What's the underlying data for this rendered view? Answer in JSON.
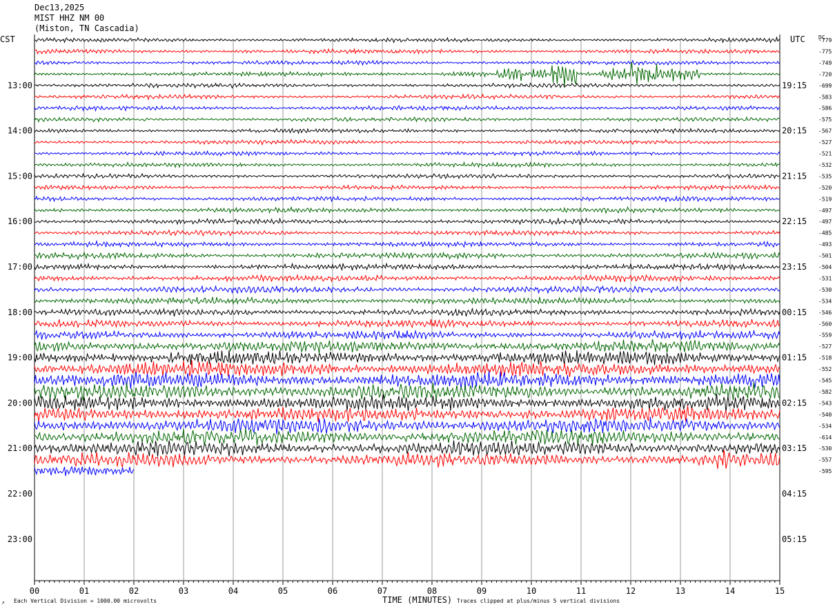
{
  "header": {
    "date": "Dec13,2025",
    "station": "MIST HHZ NM 00",
    "location": "(Miston, TN Cascadia)"
  },
  "left_zone_label": "CST",
  "right_zone_label": "UTC",
  "dc_label": "DC",
  "footer": {
    "scale_note": "Each Vertical Division = 1000.00 microvolts",
    "clip_note": "Traces clipped at plus/minus 5 vertical divisions",
    "corner_mark": "↗"
  },
  "colors": {
    "trace_cycle": [
      "#000000",
      "#ff0000",
      "#0000ff",
      "#006600"
    ],
    "grid": "#999999",
    "background": "#ffffff"
  },
  "chart_data": {
    "type": "helicorder",
    "xlabel": "TIME (MINUTES)",
    "x_ticks": [
      "00",
      "01",
      "02",
      "03",
      "04",
      "05",
      "06",
      "07",
      "08",
      "09",
      "10",
      "11",
      "12",
      "13",
      "14",
      "15"
    ],
    "x_range_minutes": [
      0,
      15
    ],
    "rows_per_hour": 4,
    "left_hour_labels": [
      "13:00",
      "14:00",
      "15:00",
      "16:00",
      "17:00",
      "18:00",
      "19:00",
      "20:00",
      "21:00",
      "22:00",
      "23:00"
    ],
    "right_hour_labels": [
      "19:15",
      "20:15",
      "21:15",
      "22:15",
      "23:15",
      "00:15",
      "01:15",
      "02:15",
      "03:15",
      "04:15",
      "05:15"
    ],
    "dc_offsets": [
      -779,
      -775,
      -749,
      -720,
      -699,
      -583,
      -586,
      -575,
      -567,
      -527,
      -521,
      -532,
      -535,
      -520,
      -519,
      -497,
      -497,
      -485,
      -493,
      -501,
      -504,
      -531,
      -530,
      -534,
      -546,
      -560,
      -559,
      -527,
      -518,
      -552,
      -545,
      -582,
      -543,
      -540,
      -534,
      -614,
      -530,
      -557,
      -595
    ],
    "relative_amplitude": [
      0.5,
      0.5,
      0.5,
      0.5,
      0.5,
      0.5,
      0.5,
      0.5,
      0.5,
      0.5,
      0.5,
      0.5,
      0.5,
      0.5,
      0.55,
      0.6,
      0.6,
      0.6,
      0.6,
      0.7,
      0.7,
      0.75,
      0.8,
      0.8,
      0.85,
      0.9,
      1.0,
      1.4,
      1.7,
      1.8,
      1.9,
      1.9,
      1.8,
      1.7,
      1.8,
      1.8,
      1.7,
      1.6,
      1.0
    ],
    "last_trace_end_minutes": 2.0,
    "events": [
      {
        "row": 3,
        "start_min": 8.2,
        "end_min": 9.1,
        "amplitude": 0.9
      },
      {
        "row": 3,
        "start_min": 9.3,
        "end_min": 9.8,
        "amplitude": 1.6
      },
      {
        "row": 3,
        "start_min": 10.0,
        "end_min": 10.3,
        "amplitude": 1.3
      },
      {
        "row": 3,
        "start_min": 10.4,
        "end_min": 10.9,
        "amplitude": 2.4
      },
      {
        "row": 3,
        "start_min": 11.4,
        "end_min": 11.9,
        "amplitude": 1.2
      },
      {
        "row": 3,
        "start_min": 12.0,
        "end_min": 12.6,
        "amplitude": 2.6
      },
      {
        "row": 3,
        "start_min": 12.6,
        "end_min": 13.4,
        "amplitude": 1.8
      },
      {
        "row": 37,
        "start_min": 13.75,
        "end_min": 14.0,
        "amplitude": 2.8
      }
    ]
  }
}
